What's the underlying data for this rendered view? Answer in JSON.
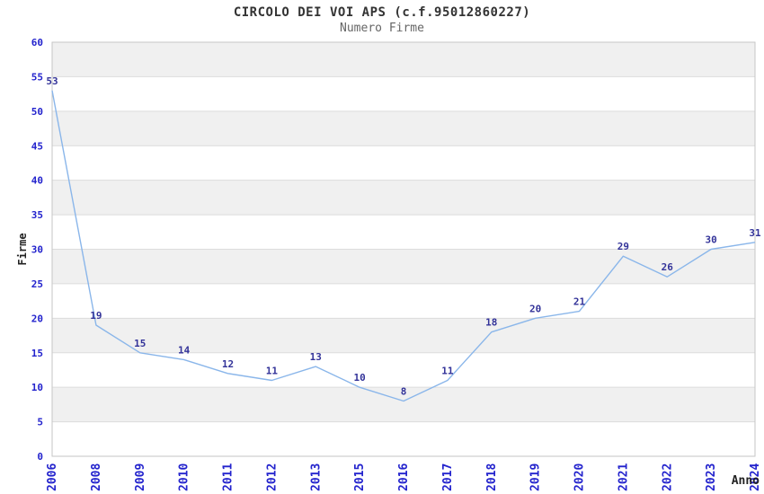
{
  "header": {
    "title": "CIRCOLO DEI VOI APS (c.f.95012860227)",
    "subtitle": "Numero Firme"
  },
  "chart_data": {
    "type": "line",
    "title": "CIRCOLO DEI VOI APS (c.f.95012860227)",
    "subtitle": "Numero Firme",
    "xlabel": "Anno",
    "ylabel": "Firme",
    "categories": [
      "2006",
      "2008",
      "2009",
      "2010",
      "2011",
      "2012",
      "2013",
      "2015",
      "2016",
      "2017",
      "2018",
      "2019",
      "2020",
      "2021",
      "2022",
      "2023",
      "2024"
    ],
    "values": [
      53,
      19,
      15,
      14,
      12,
      11,
      13,
      10,
      8,
      11,
      18,
      20,
      21,
      29,
      26,
      30,
      31
    ],
    "ylim": [
      0,
      60
    ],
    "ytick_step": 5,
    "grid": "horizontal-bands",
    "legend": "none",
    "point_labels_shown": true,
    "colors": {
      "line": "#8ab6ea",
      "point_label": "#333399",
      "tick_label": "#2323cd",
      "band": "#f0f0f0",
      "gridline": "#dcdcdc",
      "border": "#c6c6c6",
      "title": "#333333",
      "subtitle": "#666666",
      "axis_title": "#222222",
      "background": "#ffffff"
    }
  }
}
